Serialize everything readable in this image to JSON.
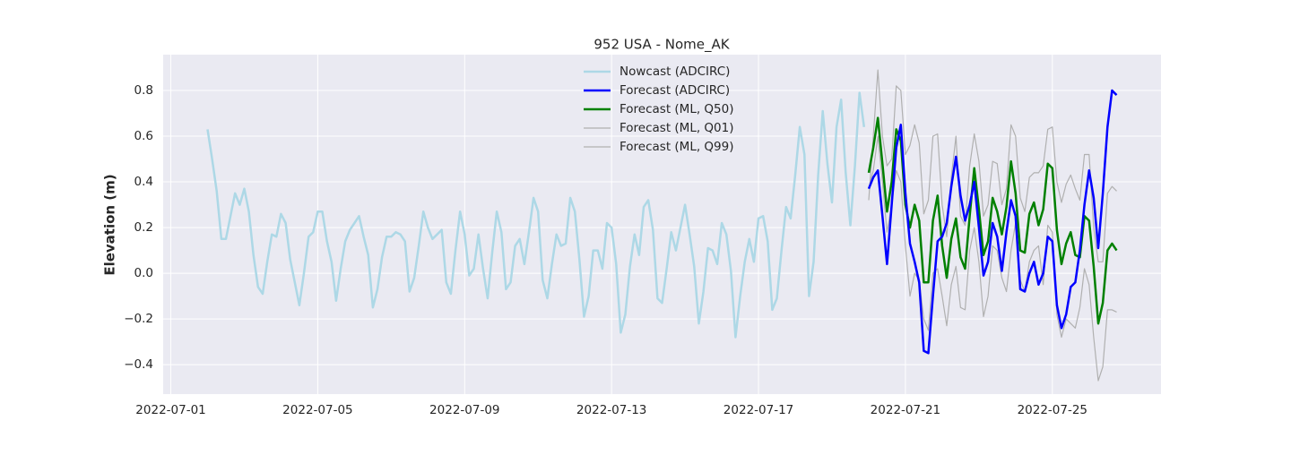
{
  "chart_data": {
    "type": "line",
    "title": "952 USA - Nome_AK",
    "y_label": "Elevation (m)",
    "xlim": [
      "2022-06-30T19:00",
      "2022-07-27T23:00"
    ],
    "xticks": [
      "2022-07-01",
      "2022-07-05",
      "2022-07-09",
      "2022-07-13",
      "2022-07-17",
      "2022-07-21",
      "2022-07-25"
    ],
    "ylim": [
      -0.529,
      0.957
    ],
    "yticks": [
      {
        "value": -0.4,
        "label": "−0.4"
      },
      {
        "value": -0.2,
        "label": "−0.2"
      },
      {
        "value": 0,
        "label": "0.0"
      },
      0.2,
      0.4,
      0.6,
      0.8
    ],
    "grid": true,
    "legend": "upper center",
    "series": [
      {
        "name": "Nowcast (ADCIRC)",
        "color": "#add8e6",
        "width": 2.5,
        "x": [
          "2022-07-02T00:00",
          "2022-07-02T03:00",
          "2022-07-02T06:00",
          "2022-07-02T09:00",
          "2022-07-02T12:00",
          "2022-07-02T15:00",
          "2022-07-02T18:00",
          "2022-07-02T21:00",
          "2022-07-03T00:00",
          "2022-07-03T03:00",
          "2022-07-03T06:00",
          "2022-07-03T09:00",
          "2022-07-03T12:00",
          "2022-07-03T15:00",
          "2022-07-03T18:00",
          "2022-07-03T21:00",
          "2022-07-04T00:00",
          "2022-07-04T03:00",
          "2022-07-04T06:00",
          "2022-07-04T09:00",
          "2022-07-04T12:00",
          "2022-07-04T15:00",
          "2022-07-04T18:00",
          "2022-07-04T21:00",
          "2022-07-05T00:00",
          "2022-07-05T03:00",
          "2022-07-05T06:00",
          "2022-07-05T09:00",
          "2022-07-05T12:00",
          "2022-07-05T15:00",
          "2022-07-05T18:00",
          "2022-07-05T21:00",
          "2022-07-06T00:00",
          "2022-07-06T03:00",
          "2022-07-06T06:00",
          "2022-07-06T09:00",
          "2022-07-06T12:00",
          "2022-07-06T15:00",
          "2022-07-06T18:00",
          "2022-07-06T21:00",
          "2022-07-07T00:00",
          "2022-07-07T03:00",
          "2022-07-07T06:00",
          "2022-07-07T09:00",
          "2022-07-07T12:00",
          "2022-07-07T15:00",
          "2022-07-07T18:00",
          "2022-07-07T21:00",
          "2022-07-08T00:00",
          "2022-07-08T03:00",
          "2022-07-08T06:00",
          "2022-07-08T09:00",
          "2022-07-08T12:00",
          "2022-07-08T15:00",
          "2022-07-08T18:00",
          "2022-07-08T21:00",
          "2022-07-09T00:00",
          "2022-07-09T03:00",
          "2022-07-09T06:00",
          "2022-07-09T09:00",
          "2022-07-09T12:00",
          "2022-07-09T15:00",
          "2022-07-09T18:00",
          "2022-07-09T21:00",
          "2022-07-10T00:00",
          "2022-07-10T03:00",
          "2022-07-10T06:00",
          "2022-07-10T09:00",
          "2022-07-10T12:00",
          "2022-07-10T15:00",
          "2022-07-10T18:00",
          "2022-07-10T21:00",
          "2022-07-11T00:00",
          "2022-07-11T03:00",
          "2022-07-11T06:00",
          "2022-07-11T09:00",
          "2022-07-11T12:00",
          "2022-07-11T15:00",
          "2022-07-11T18:00",
          "2022-07-11T21:00",
          "2022-07-12T00:00",
          "2022-07-12T03:00",
          "2022-07-12T06:00",
          "2022-07-12T09:00",
          "2022-07-12T12:00",
          "2022-07-12T15:00",
          "2022-07-12T18:00",
          "2022-07-12T21:00",
          "2022-07-13T00:00",
          "2022-07-13T03:00",
          "2022-07-13T06:00",
          "2022-07-13T09:00",
          "2022-07-13T12:00",
          "2022-07-13T15:00",
          "2022-07-13T18:00",
          "2022-07-13T21:00",
          "2022-07-14T00:00",
          "2022-07-14T03:00",
          "2022-07-14T06:00",
          "2022-07-14T09:00",
          "2022-07-14T12:00",
          "2022-07-14T15:00",
          "2022-07-14T18:00",
          "2022-07-14T21:00",
          "2022-07-15T00:00",
          "2022-07-15T03:00",
          "2022-07-15T06:00",
          "2022-07-15T09:00",
          "2022-07-15T12:00",
          "2022-07-15T15:00",
          "2022-07-15T18:00",
          "2022-07-15T21:00",
          "2022-07-16T00:00",
          "2022-07-16T03:00",
          "2022-07-16T06:00",
          "2022-07-16T09:00",
          "2022-07-16T12:00",
          "2022-07-16T15:00",
          "2022-07-16T18:00",
          "2022-07-16T21:00",
          "2022-07-17T00:00",
          "2022-07-17T03:00",
          "2022-07-17T06:00",
          "2022-07-17T09:00",
          "2022-07-17T12:00",
          "2022-07-17T15:00",
          "2022-07-17T18:00",
          "2022-07-17T21:00",
          "2022-07-18T00:00",
          "2022-07-18T03:00",
          "2022-07-18T06:00",
          "2022-07-18T09:00",
          "2022-07-18T12:00",
          "2022-07-18T15:00",
          "2022-07-18T18:00",
          "2022-07-18T21:00",
          "2022-07-19T00:00",
          "2022-07-19T03:00",
          "2022-07-19T06:00",
          "2022-07-19T09:00",
          "2022-07-19T12:00",
          "2022-07-19T15:00",
          "2022-07-19T18:00",
          "2022-07-19T21:00"
        ],
        "values": [
          0.63,
          0.5,
          0.36,
          0.15,
          0.15,
          0.25,
          0.35,
          0.3,
          0.37,
          0.27,
          0.08,
          -0.06,
          -0.09,
          0.05,
          0.17,
          0.16,
          0.26,
          0.22,
          0.06,
          -0.04,
          -0.14,
          0.0,
          0.16,
          0.18,
          0.27,
          0.27,
          0.14,
          0.05,
          -0.12,
          0.02,
          0.14,
          0.19,
          0.22,
          0.25,
          0.16,
          0.08,
          -0.15,
          -0.07,
          0.07,
          0.16,
          0.16,
          0.18,
          0.17,
          0.14,
          -0.08,
          -0.02,
          0.12,
          0.27,
          0.2,
          0.15,
          0.17,
          0.19,
          -0.04,
          -0.09,
          0.1,
          0.27,
          0.17,
          -0.01,
          0.02,
          0.17,
          0.02,
          -0.11,
          0.09,
          0.27,
          0.18,
          -0.07,
          -0.04,
          0.12,
          0.15,
          0.04,
          0.18,
          0.33,
          0.27,
          -0.03,
          -0.11,
          0.04,
          0.17,
          0.12,
          0.13,
          0.33,
          0.27,
          0.06,
          -0.19,
          -0.1,
          0.1,
          0.1,
          0.02,
          0.22,
          0.2,
          0.04,
          -0.26,
          -0.18,
          0.03,
          0.17,
          0.08,
          0.29,
          0.32,
          0.19,
          -0.11,
          -0.13,
          0.02,
          0.18,
          0.1,
          0.2,
          0.3,
          0.17,
          0.03,
          -0.22,
          -0.08,
          0.11,
          0.1,
          0.04,
          0.22,
          0.17,
          0.01,
          -0.28,
          -0.1,
          0.05,
          0.15,
          0.05,
          0.24,
          0.25,
          0.14,
          -0.16,
          -0.11,
          0.1,
          0.29,
          0.24,
          0.43,
          0.64,
          0.52,
          -0.1,
          0.05,
          0.43,
          0.71,
          0.48,
          0.31,
          0.64,
          0.76,
          0.44,
          0.21,
          0.47,
          0.79,
          0.64
        ]
      },
      {
        "name": "Forecast (ADCIRC)",
        "color": "#0000ff",
        "width": 2.5,
        "x": [
          "2022-07-20T00:00",
          "2022-07-20T03:00",
          "2022-07-20T06:00",
          "2022-07-20T09:00",
          "2022-07-20T12:00",
          "2022-07-20T15:00",
          "2022-07-20T18:00",
          "2022-07-20T21:00",
          "2022-07-21T00:00",
          "2022-07-21T03:00",
          "2022-07-21T06:00",
          "2022-07-21T09:00",
          "2022-07-21T12:00",
          "2022-07-21T15:00",
          "2022-07-21T18:00",
          "2022-07-21T21:00",
          "2022-07-22T00:00",
          "2022-07-22T03:00",
          "2022-07-22T06:00",
          "2022-07-22T09:00",
          "2022-07-22T12:00",
          "2022-07-22T15:00",
          "2022-07-22T18:00",
          "2022-07-22T21:00",
          "2022-07-23T00:00",
          "2022-07-23T03:00",
          "2022-07-23T06:00",
          "2022-07-23T09:00",
          "2022-07-23T12:00",
          "2022-07-23T15:00",
          "2022-07-23T18:00",
          "2022-07-23T21:00",
          "2022-07-24T00:00",
          "2022-07-24T03:00",
          "2022-07-24T06:00",
          "2022-07-24T09:00",
          "2022-07-24T12:00",
          "2022-07-24T15:00",
          "2022-07-24T18:00",
          "2022-07-24T21:00",
          "2022-07-25T00:00",
          "2022-07-25T03:00",
          "2022-07-25T06:00",
          "2022-07-25T09:00",
          "2022-07-25T12:00",
          "2022-07-25T15:00",
          "2022-07-25T18:00",
          "2022-07-25T21:00",
          "2022-07-26T00:00",
          "2022-07-26T03:00",
          "2022-07-26T06:00",
          "2022-07-26T09:00",
          "2022-07-26T12:00",
          "2022-07-26T15:00",
          "2022-07-26T18:00"
        ],
        "values": [
          0.37,
          0.42,
          0.45,
          0.25,
          0.04,
          0.3,
          0.55,
          0.65,
          0.35,
          0.13,
          0.05,
          -0.04,
          -0.34,
          -0.35,
          -0.1,
          0.14,
          0.16,
          0.22,
          0.38,
          0.51,
          0.34,
          0.23,
          0.3,
          0.4,
          0.2,
          -0.01,
          0.05,
          0.22,
          0.16,
          0.01,
          0.18,
          0.32,
          0.25,
          -0.07,
          -0.08,
          0.0,
          0.05,
          -0.05,
          0.0,
          0.16,
          0.14,
          -0.14,
          -0.24,
          -0.18,
          -0.06,
          -0.04,
          0.1,
          0.3,
          0.45,
          0.33,
          0.11,
          0.35,
          0.64,
          0.8,
          0.78
        ]
      },
      {
        "name": "Forecast (ML, Q50)",
        "color": "#008000",
        "width": 2.5,
        "x": [
          "2022-07-20T00:00",
          "2022-07-20T03:00",
          "2022-07-20T06:00",
          "2022-07-20T09:00",
          "2022-07-20T12:00",
          "2022-07-20T15:00",
          "2022-07-20T18:00",
          "2022-07-20T21:00",
          "2022-07-21T00:00",
          "2022-07-21T03:00",
          "2022-07-21T06:00",
          "2022-07-21T09:00",
          "2022-07-21T12:00",
          "2022-07-21T15:00",
          "2022-07-21T18:00",
          "2022-07-21T21:00",
          "2022-07-22T00:00",
          "2022-07-22T03:00",
          "2022-07-22T06:00",
          "2022-07-22T09:00",
          "2022-07-22T12:00",
          "2022-07-22T15:00",
          "2022-07-22T18:00",
          "2022-07-22T21:00",
          "2022-07-23T00:00",
          "2022-07-23T03:00",
          "2022-07-23T06:00",
          "2022-07-23T09:00",
          "2022-07-23T12:00",
          "2022-07-23T15:00",
          "2022-07-23T18:00",
          "2022-07-23T21:00",
          "2022-07-24T00:00",
          "2022-07-24T03:00",
          "2022-07-24T06:00",
          "2022-07-24T09:00",
          "2022-07-24T12:00",
          "2022-07-24T15:00",
          "2022-07-24T18:00",
          "2022-07-24T21:00",
          "2022-07-25T00:00",
          "2022-07-25T03:00",
          "2022-07-25T06:00",
          "2022-07-25T09:00",
          "2022-07-25T12:00",
          "2022-07-25T15:00",
          "2022-07-25T18:00",
          "2022-07-25T21:00",
          "2022-07-26T00:00",
          "2022-07-26T03:00",
          "2022-07-26T06:00",
          "2022-07-26T09:00",
          "2022-07-26T12:00",
          "2022-07-26T15:00",
          "2022-07-26T18:00"
        ],
        "values": [
          0.44,
          0.55,
          0.68,
          0.48,
          0.27,
          0.4,
          0.63,
          0.58,
          0.3,
          0.2,
          0.3,
          0.23,
          -0.04,
          -0.04,
          0.23,
          0.34,
          0.12,
          -0.02,
          0.15,
          0.24,
          0.07,
          0.02,
          0.25,
          0.46,
          0.28,
          0.08,
          0.14,
          0.33,
          0.27,
          0.17,
          0.29,
          0.49,
          0.35,
          0.1,
          0.09,
          0.26,
          0.31,
          0.21,
          0.28,
          0.48,
          0.46,
          0.19,
          0.04,
          0.13,
          0.18,
          0.08,
          0.07,
          0.25,
          0.23,
          0.03,
          -0.22,
          -0.13,
          0.1,
          0.13,
          0.1
        ]
      },
      {
        "name": "Forecast (ML, Q01)",
        "color": "#b0b0b0",
        "width": 1.2,
        "x": [
          "2022-07-20T00:00",
          "2022-07-20T03:00",
          "2022-07-20T06:00",
          "2022-07-20T09:00",
          "2022-07-20T12:00",
          "2022-07-20T15:00",
          "2022-07-20T18:00",
          "2022-07-20T21:00",
          "2022-07-21T00:00",
          "2022-07-21T03:00",
          "2022-07-21T06:00",
          "2022-07-21T09:00",
          "2022-07-21T12:00",
          "2022-07-21T15:00",
          "2022-07-21T18:00",
          "2022-07-21T21:00",
          "2022-07-22T00:00",
          "2022-07-22T03:00",
          "2022-07-22T06:00",
          "2022-07-22T09:00",
          "2022-07-22T12:00",
          "2022-07-22T15:00",
          "2022-07-22T18:00",
          "2022-07-22T21:00",
          "2022-07-23T00:00",
          "2022-07-23T03:00",
          "2022-07-23T06:00",
          "2022-07-23T09:00",
          "2022-07-23T12:00",
          "2022-07-23T15:00",
          "2022-07-23T18:00",
          "2022-07-23T21:00",
          "2022-07-24T00:00",
          "2022-07-24T03:00",
          "2022-07-24T06:00",
          "2022-07-24T09:00",
          "2022-07-24T12:00",
          "2022-07-24T15:00",
          "2022-07-24T18:00",
          "2022-07-24T21:00",
          "2022-07-25T00:00",
          "2022-07-25T03:00",
          "2022-07-25T06:00",
          "2022-07-25T09:00",
          "2022-07-25T12:00",
          "2022-07-25T15:00",
          "2022-07-25T18:00",
          "2022-07-25T21:00",
          "2022-07-26T00:00",
          "2022-07-26T03:00",
          "2022-07-26T06:00",
          "2022-07-26T09:00",
          "2022-07-26T12:00",
          "2022-07-26T15:00",
          "2022-07-26T18:00"
        ],
        "values": [
          0.37,
          0.45,
          0.6,
          0.4,
          0.18,
          0.3,
          0.45,
          0.4,
          0.12,
          -0.1,
          0.0,
          -0.03,
          -0.2,
          -0.25,
          0.0,
          0.02,
          -0.1,
          -0.23,
          -0.05,
          0.03,
          -0.15,
          -0.16,
          0.1,
          0.2,
          0.05,
          -0.19,
          -0.1,
          0.12,
          0.1,
          -0.02,
          -0.08,
          0.1,
          0.22,
          -0.03,
          -0.08,
          0.05,
          0.1,
          0.12,
          -0.05,
          0.21,
          0.18,
          -0.18,
          -0.28,
          -0.2,
          -0.22,
          -0.24,
          -0.15,
          0.02,
          -0.05,
          -0.28,
          -0.47,
          -0.41,
          -0.16,
          -0.16,
          -0.17
        ]
      },
      {
        "name": "Forecast (ML, Q99)",
        "color": "#b0b0b0",
        "width": 1.2,
        "x": [
          "2022-07-20T00:00",
          "2022-07-20T03:00",
          "2022-07-20T06:00",
          "2022-07-20T09:00",
          "2022-07-20T12:00",
          "2022-07-20T15:00",
          "2022-07-20T18:00",
          "2022-07-20T21:00",
          "2022-07-21T00:00",
          "2022-07-21T03:00",
          "2022-07-21T06:00",
          "2022-07-21T09:00",
          "2022-07-21T12:00",
          "2022-07-21T15:00",
          "2022-07-21T18:00",
          "2022-07-21T21:00",
          "2022-07-22T00:00",
          "2022-07-22T03:00",
          "2022-07-22T06:00",
          "2022-07-22T09:00",
          "2022-07-22T12:00",
          "2022-07-22T15:00",
          "2022-07-22T18:00",
          "2022-07-22T21:00",
          "2022-07-23T00:00",
          "2022-07-23T03:00",
          "2022-07-23T06:00",
          "2022-07-23T09:00",
          "2022-07-23T12:00",
          "2022-07-23T15:00",
          "2022-07-23T18:00",
          "2022-07-23T21:00",
          "2022-07-24T00:00",
          "2022-07-24T03:00",
          "2022-07-24T06:00",
          "2022-07-24T09:00",
          "2022-07-24T12:00",
          "2022-07-24T15:00",
          "2022-07-24T18:00",
          "2022-07-24T21:00",
          "2022-07-25T00:00",
          "2022-07-25T03:00",
          "2022-07-25T06:00",
          "2022-07-25T09:00",
          "2022-07-25T12:00",
          "2022-07-25T15:00",
          "2022-07-25T18:00",
          "2022-07-25T21:00",
          "2022-07-26T00:00",
          "2022-07-26T03:00",
          "2022-07-26T06:00",
          "2022-07-26T09:00",
          "2022-07-26T12:00",
          "2022-07-26T15:00",
          "2022-07-26T18:00"
        ],
        "values": [
          0.32,
          0.6,
          0.89,
          0.6,
          0.47,
          0.5,
          0.82,
          0.8,
          0.52,
          0.56,
          0.65,
          0.57,
          0.26,
          0.32,
          0.6,
          0.61,
          0.3,
          0.16,
          0.42,
          0.6,
          0.25,
          0.21,
          0.47,
          0.61,
          0.49,
          0.25,
          0.3,
          0.49,
          0.48,
          0.3,
          0.37,
          0.65,
          0.6,
          0.33,
          0.27,
          0.42,
          0.44,
          0.44,
          0.47,
          0.63,
          0.64,
          0.4,
          0.31,
          0.39,
          0.43,
          0.37,
          0.32,
          0.52,
          0.52,
          0.2,
          0.05,
          0.05,
          0.35,
          0.38,
          0.36
        ]
      }
    ]
  }
}
